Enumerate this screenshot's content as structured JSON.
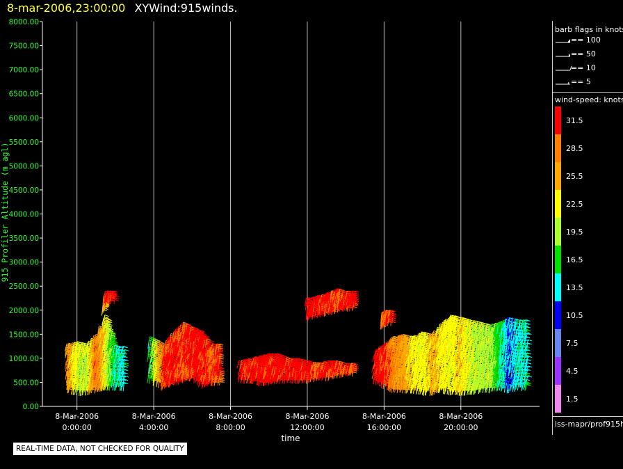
{
  "header": {
    "timestamp": "8-mar-2006,23:00:00",
    "product": "XYWind:915winds."
  },
  "colors": {
    "timestamp": "#ffff33",
    "axis_text": "#33ff33",
    "gridline": "#bbbbbb"
  },
  "chart_data": {
    "type": "scatter",
    "title": "8-mar-2006,23:00:00 XYWind:915winds.",
    "xlabel": "time",
    "ylabel": "915 Profiler Altitude (m agl)",
    "ylim": [
      0,
      8000
    ],
    "yticks": [
      "0.00",
      "500.00",
      "1000.00",
      "1500.00",
      "2000.00",
      "2500.00",
      "3000.00",
      "3500.00",
      "4000.00",
      "4500.00",
      "5000.00",
      "5500.00",
      "6000.00",
      "6500.00",
      "7000.00",
      "7500.00",
      "8000.00"
    ],
    "xlim_hours": [
      -1.8,
      24.1
    ],
    "xticks": [
      {
        "hour": 0,
        "date": "8-Mar-2006",
        "time": "0:00:00"
      },
      {
        "hour": 4,
        "date": "8-Mar-2006",
        "time": "4:00:00"
      },
      {
        "hour": 8,
        "date": "8-Mar-2006",
        "time": "8:00:00"
      },
      {
        "hour": 12,
        "date": "8-Mar-2006",
        "time": "12:00:00"
      },
      {
        "hour": 16,
        "date": "8-Mar-2006",
        "time": "16:00:00"
      },
      {
        "hour": 20,
        "date": "8-Mar-2006",
        "time": "20:00:00"
      }
    ],
    "vertical_grid": true,
    "series": [
      {
        "hours": [
          -0.5,
          0.0,
          0.5,
          1.0,
          1.5,
          2.0
        ],
        "alt_low": [
          450,
          400,
          400,
          450,
          500,
          500
        ],
        "alt_high": [
          1300,
          1350,
          1300,
          1500,
          1900,
          1250
        ],
        "speed_kt": [
          27,
          21,
          20,
          29,
          22,
          14
        ]
      },
      {
        "hours": [
          1.4,
          1.5
        ],
        "alt_low": [
          2050,
          2300
        ],
        "alt_high": [
          2150,
          2400
        ],
        "speed_kt": [
          22,
          31
        ]
      },
      {
        "hours": [
          3.8,
          4.5,
          5.0,
          5.5,
          6.0,
          6.5,
          7.0
        ],
        "alt_low": [
          650,
          500,
          600,
          650,
          700,
          550,
          600
        ],
        "alt_high": [
          1450,
          1300,
          1550,
          1750,
          1650,
          1550,
          1300
        ],
        "speed_kt": [
          16,
          30,
          31,
          30,
          31,
          31,
          30
        ]
      },
      {
        "hours": [
          8.5,
          9.0,
          9.5,
          10.0,
          10.5,
          11.0,
          11.5,
          12.0,
          12.5,
          13.0,
          13.5,
          14.0
        ],
        "alt_low": [
          650,
          650,
          600,
          600,
          650,
          650,
          650,
          650,
          700,
          700,
          750,
          800
        ],
        "alt_high": [
          950,
          1000,
          1050,
          1100,
          1100,
          1000,
          1000,
          950,
          900,
          950,
          950,
          900
        ],
        "speed_kt": [
          31,
          31,
          31,
          31,
          31,
          31,
          31,
          31,
          30,
          31,
          30,
          30
        ]
      },
      {
        "hours": [
          12.0,
          12.5,
          13.0,
          13.5,
          14.0
        ],
        "alt_low": [
          1950,
          2000,
          2050,
          2100,
          2150
        ],
        "alt_high": [
          2250,
          2300,
          2350,
          2450,
          2400
        ],
        "speed_kt": [
          31,
          31,
          31,
          30,
          31
        ]
      },
      {
        "hours": [
          15.9,
          16.0
        ],
        "alt_low": [
          1750,
          1850
        ],
        "alt_high": [
          1950,
          2000
        ],
        "speed_kt": [
          29,
          30
        ]
      },
      {
        "hours": [
          15.5,
          16.0,
          16.5,
          17.0,
          17.5,
          18.0,
          18.5,
          19.0,
          19.5,
          20.0,
          20.5,
          21.0,
          21.5,
          22.0,
          22.5,
          23.0
        ],
        "alt_low": [
          650,
          550,
          450,
          450,
          450,
          400,
          400,
          450,
          400,
          400,
          400,
          450,
          450,
          500,
          450,
          500
        ],
        "alt_high": [
          1150,
          1300,
          1450,
          1500,
          1450,
          1550,
          1500,
          1750,
          1900,
          1850,
          1800,
          1750,
          1700,
          1750,
          1850,
          1800
        ],
        "speed_kt": [
          31,
          31,
          28,
          26,
          23,
          22,
          25,
          23,
          22,
          24,
          21,
          20,
          20,
          16,
          12,
          14
        ]
      }
    ],
    "legend_position": "right"
  },
  "legend": {
    "flags_title": "barb flags in knots",
    "flags": [
      "== 100",
      "== 50",
      "== 10",
      "== 5"
    ],
    "speed_title": "wind-speed: knots",
    "scale": [
      {
        "label": "31.5",
        "color": "#ff0000"
      },
      {
        "label": "28.5",
        "color": "#ff7f00"
      },
      {
        "label": "25.5",
        "color": "#ffaa00"
      },
      {
        "label": "22.5",
        "color": "#ffff00"
      },
      {
        "label": "19.5",
        "color": "#aaff33"
      },
      {
        "label": "16.5",
        "color": "#00e000"
      },
      {
        "label": "13.5",
        "color": "#00ffff"
      },
      {
        "label": "10.5",
        "color": "#0000ff"
      },
      {
        "label": "7.5",
        "color": "#6688ee"
      },
      {
        "label": "4.5",
        "color": "#9933ff"
      },
      {
        "label": "1.5",
        "color": "#ee88ee"
      }
    ],
    "source": "iss-mapr/prof915h"
  },
  "notice": "REAL-TIME DATA, NOT CHECKED FOR QUALITY"
}
